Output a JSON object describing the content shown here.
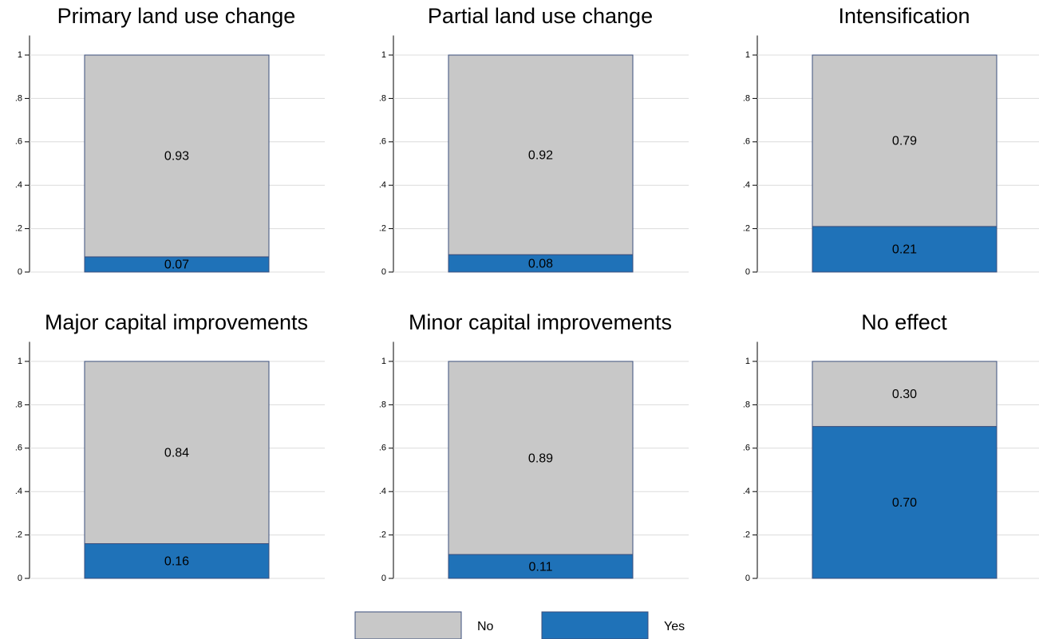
{
  "chart_data": {
    "type": "bar",
    "stacked": true,
    "categories": [
      "Primary land use change",
      "Partial land use change",
      "Intensification",
      "Major capital improvements",
      "Minor capital improvements",
      "No effect"
    ],
    "series": [
      {
        "name": "Yes",
        "color": "#1f72b8",
        "values": [
          0.07,
          0.08,
          0.21,
          0.16,
          0.11,
          0.7
        ],
        "value_labels": [
          "0.07",
          "0.08",
          "0.21",
          "0.16",
          "0.11",
          "0.70"
        ]
      },
      {
        "name": "No",
        "color": "#c8c8c8",
        "values": [
          0.93,
          0.92,
          0.79,
          0.84,
          0.89,
          0.3
        ],
        "value_labels": [
          "0.93",
          "0.92",
          "0.79",
          "0.84",
          "0.89",
          "0.30"
        ]
      }
    ],
    "ylim": [
      0,
      1.09
    ],
    "yticks": [
      0,
      {
        "value": 0.2,
        "label": ".2"
      },
      {
        "value": 0.4,
        "label": ".4"
      },
      {
        "value": 0.6,
        "label": ".6"
      },
      {
        "value": 0.8,
        "label": ".8"
      },
      1
    ],
    "grid": true,
    "legend": "bottom"
  }
}
